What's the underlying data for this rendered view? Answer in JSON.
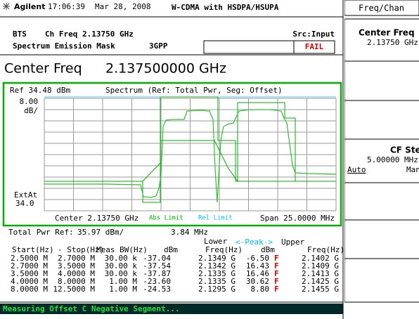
{
  "header": {
    "brand": "Agilent",
    "time": "17:06:39",
    "date": "Mar 28, 2008",
    "mode": "W-CDMA with HSDPA/HSUPA"
  },
  "info": {
    "standard": "BTS",
    "ch_freq": "Ch Freq 2.13750 GHz",
    "source": "Src:Input",
    "measurement": "Spectrum Emission Mask",
    "spec": "3GPP",
    "result": "FAIL"
  },
  "center_freq": {
    "label": "Center Freq",
    "value": "2.137500000 GHz"
  },
  "graph": {
    "ref": "Ref 34.48 dBm",
    "title": "Spectrum (Ref: Total Pwr, Seg: Offset)",
    "scale": "8.00",
    "scale_unit": "dB/",
    "atten_label": "ExtAt",
    "atten": "34.0",
    "center": "Center 2.13750 GHz",
    "abs_limit": "Abs Limit",
    "rel_limit": "Rel Limit",
    "span": "Span 25.0000 MHz"
  },
  "table": {
    "total_pwr_label": "Total Pwr Ref:",
    "total_pwr": "35.97 dBm/",
    "bandwidth": "3.84 MHz",
    "group_headers": [
      "Lower",
      "<-Peak->",
      "Upper"
    ],
    "columns": [
      "Start(Hz)",
      "- Stop(Hz)",
      "Meas BW(Hz)",
      "dBm",
      "Freq(Hz)",
      "dBm",
      "Freq(Hz)"
    ],
    "rows": [
      [
        "2.5000 M",
        "2.7000 M",
        "30.00 k",
        "-37.04",
        "2.1349 G",
        "-6.50",
        "F",
        "2.1402 G"
      ],
      [
        "2.7000 M",
        "3.5000 M",
        "30.00 k",
        "-37.54",
        "2.1342 G",
        "16.43",
        "F",
        "2.1409 G"
      ],
      [
        "3.5000 M",
        "4.0000 M",
        "30.00 k",
        "-37.87",
        "2.1335 G",
        "16.46",
        "F",
        "2.1413 G"
      ],
      [
        "4.0000 M",
        "8.0000 M",
        "1.00 M",
        "-23.60",
        "2.1335 G",
        "30.62",
        "F",
        "2.1425 G"
      ],
      [
        "8.0000 M",
        "12.5000 M",
        "1.00 M",
        "-24.53",
        "2.1295 G",
        "8.80",
        "F",
        "2.1455 G"
      ]
    ]
  },
  "status": "Measuring Offset C Negative Segment...",
  "softkeys": {
    "menu": "Freq/Chan",
    "keys": [
      {
        "label": "Center Freq",
        "value": "2.13750 GHz"
      },
      {
        "label": "CF Step",
        "value": "5.00000 MHz",
        "options": [
          "Auto",
          "Man"
        ]
      }
    ]
  }
}
